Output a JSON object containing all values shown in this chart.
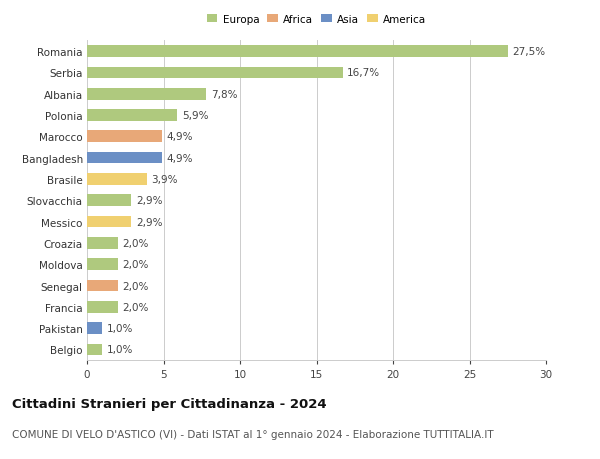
{
  "categories": [
    "Romania",
    "Serbia",
    "Albania",
    "Polonia",
    "Marocco",
    "Bangladesh",
    "Brasile",
    "Slovacchia",
    "Messico",
    "Croazia",
    "Moldova",
    "Senegal",
    "Francia",
    "Pakistan",
    "Belgio"
  ],
  "values": [
    27.5,
    16.7,
    7.8,
    5.9,
    4.9,
    4.9,
    3.9,
    2.9,
    2.9,
    2.0,
    2.0,
    2.0,
    2.0,
    1.0,
    1.0
  ],
  "labels": [
    "27,5%",
    "16,7%",
    "7,8%",
    "5,9%",
    "4,9%",
    "4,9%",
    "3,9%",
    "2,9%",
    "2,9%",
    "2,0%",
    "2,0%",
    "2,0%",
    "2,0%",
    "1,0%",
    "1,0%"
  ],
  "continents": [
    "Europa",
    "Europa",
    "Europa",
    "Europa",
    "Africa",
    "Asia",
    "America",
    "Europa",
    "America",
    "Europa",
    "Europa",
    "Africa",
    "Europa",
    "Asia",
    "Europa"
  ],
  "colors": {
    "Europa": "#afc97e",
    "Africa": "#e8a878",
    "Asia": "#6b8fc5",
    "America": "#f0d070"
  },
  "xlim": [
    0,
    30
  ],
  "xticks": [
    0,
    5,
    10,
    15,
    20,
    25,
    30
  ],
  "title": "Cittadini Stranieri per Cittadinanza - 2024",
  "subtitle": "COMUNE DI VELO D'ASTICO (VI) - Dati ISTAT al 1° gennaio 2024 - Elaborazione TUTTITALIA.IT",
  "background_color": "#ffffff",
  "grid_color": "#cccccc",
  "bar_height": 0.55,
  "label_fontsize": 7.5,
  "tick_fontsize": 7.5,
  "title_fontsize": 9.5,
  "subtitle_fontsize": 7.5
}
